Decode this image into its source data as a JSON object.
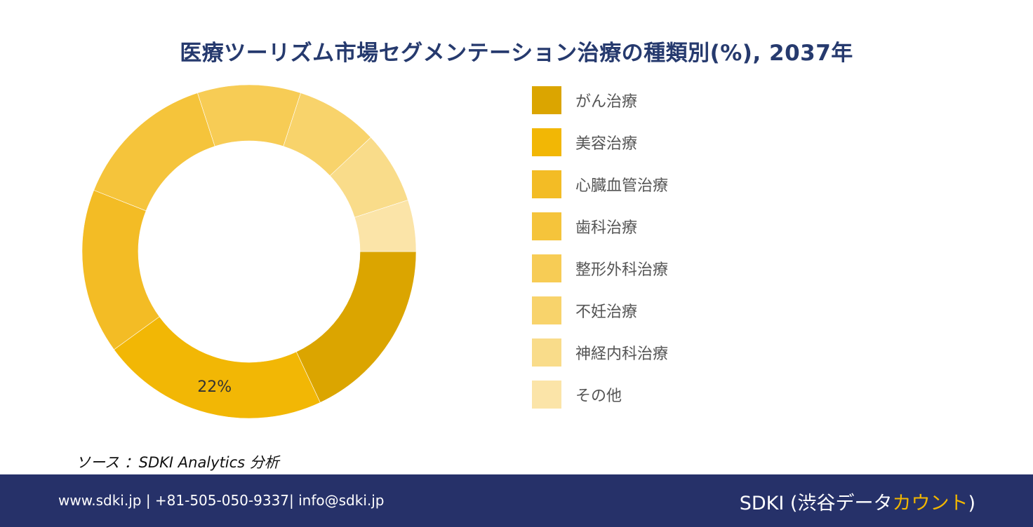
{
  "title": "医療ツーリズム市場セグメンテーション治療の種類別(%), 2037年",
  "chart_data": {
    "type": "pie",
    "donut": true,
    "categories": [
      "がん治療",
      "美容治療",
      "心臓血管治療",
      "歯科治療",
      "整形外科治療",
      "不妊治療",
      "神経内科治療",
      "その他"
    ],
    "values": [
      18,
      22,
      16,
      14,
      10,
      8,
      7,
      5
    ],
    "colors": [
      "#dba500",
      "#f2b705",
      "#f3bc25",
      "#f5c43b",
      "#f7cc55",
      "#f8d36b",
      "#f9dc8a",
      "#fbe4a8"
    ],
    "data_labels": [
      {
        "index": 1,
        "text": "22%"
      }
    ],
    "legend_position": "right"
  },
  "source": "ソース ：SDKI Analytics 分析",
  "footer": {
    "contact": "www.sdki.jp | +81-505-050-9337| info@sdki.jp",
    "brand_main": "SDKI (渋谷データ",
    "brand_accent": "カウント",
    "brand_close": ")"
  }
}
